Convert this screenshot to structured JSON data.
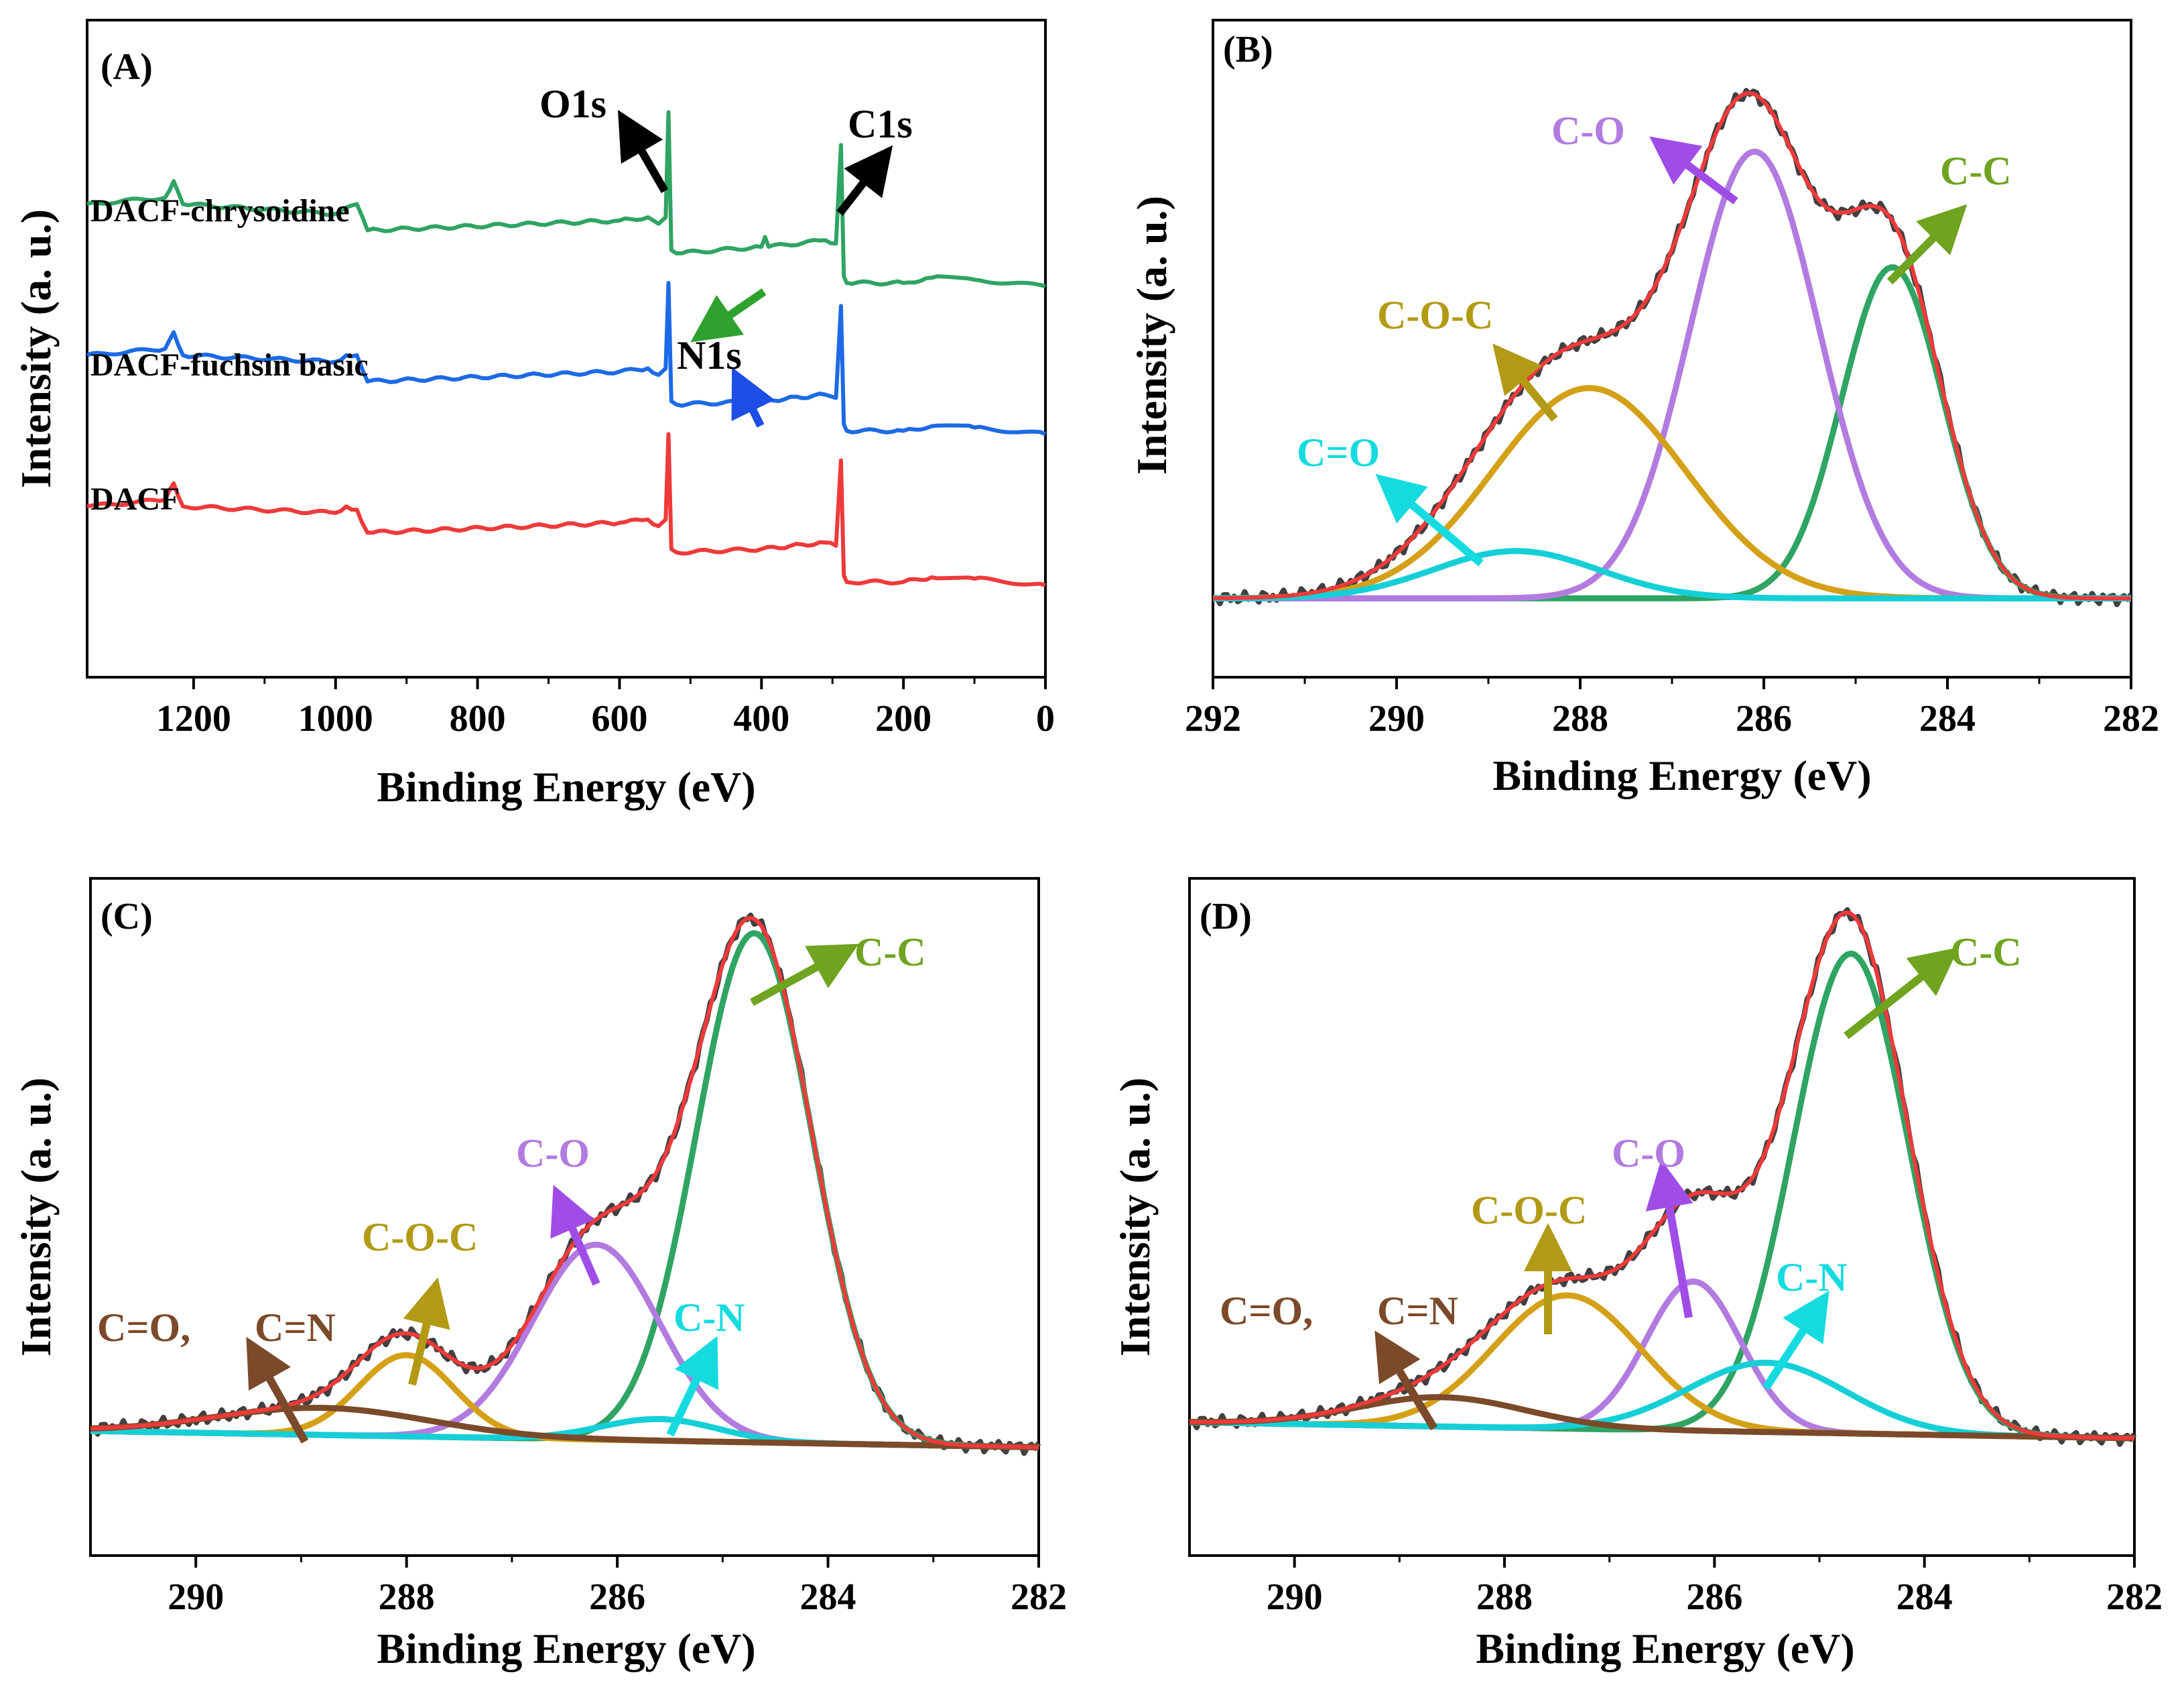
{
  "colors": {
    "axis": "#000000",
    "raw": "#404040",
    "envelope": "#ee3a3a",
    "green": "#2fa463",
    "blue": "#1d6ae5",
    "red": "#ee3a3a",
    "purple": "#b27be0",
    "gold": "#d4a017",
    "cyan": "#15cfd7",
    "brown": "#7b4a2a",
    "arrow_green": "#6fa320",
    "arrow_purple": "#a04de8",
    "arrow_gold": "#b39a14",
    "label_purple": "#b27be0",
    "label_gold": "#b39a14",
    "label_cyan": "#15dbe0",
    "label_green": "#6fa320",
    "label_brown": "#7b4a2a"
  },
  "chart_data": [
    {
      "id": "A",
      "panel_label": "(A)",
      "type": "line",
      "title": "",
      "xlabel": "Binding Energy (eV)",
      "ylabel": "Intensity (a. u.)",
      "xlim": [
        1350,
        0
      ],
      "x_reversed": true,
      "xticks": [
        1200,
        1000,
        800,
        600,
        400,
        200,
        0
      ],
      "xtick_labels": [
        "1200",
        "1000",
        "800",
        "600",
        "400",
        "200",
        "0"
      ],
      "ylim": [
        0,
        10
      ],
      "series": [
        {
          "name": "DACF-chrysoidine",
          "color_key": "green",
          "baseline": 7.2,
          "x": [
            1350,
            1240,
            1228,
            1215,
            1000,
            985,
            970,
            955,
            600,
            560,
            545,
            535,
            531,
            527,
            520,
            400,
            395,
            390,
            310,
            295,
            288,
            284,
            280,
            200,
            160,
            100,
            0
          ],
          "y": [
            7.2,
            7.3,
            7.55,
            7.2,
            7.05,
            7.15,
            7.2,
            6.8,
            6.95,
            7.0,
            6.9,
            7.0,
            8.6,
            6.5,
            6.45,
            6.55,
            6.7,
            6.55,
            6.65,
            6.6,
            8.1,
            6.1,
            6.0,
            6.0,
            6.08,
            6.05,
            5.95
          ]
        },
        {
          "name": "DACF-fuchsin basic",
          "color_key": "blue",
          "baseline": 4.9,
          "x": [
            1350,
            1240,
            1228,
            1215,
            1000,
            985,
            970,
            955,
            600,
            560,
            545,
            535,
            531,
            527,
            520,
            400,
            310,
            295,
            288,
            284,
            280,
            200,
            160,
            100,
            0
          ],
          "y": [
            4.9,
            5.0,
            5.25,
            4.9,
            4.8,
            4.9,
            4.9,
            4.5,
            4.65,
            4.7,
            4.6,
            4.7,
            6.0,
            4.2,
            4.15,
            4.2,
            4.3,
            4.25,
            5.65,
            3.85,
            3.75,
            3.75,
            3.82,
            3.8,
            3.7
          ]
        },
        {
          "name": "DACF",
          "color_key": "red",
          "baseline": 2.6,
          "x": [
            1350,
            1240,
            1228,
            1215,
            1000,
            985,
            970,
            955,
            600,
            560,
            545,
            535,
            531,
            527,
            520,
            400,
            310,
            295,
            288,
            284,
            280,
            200,
            160,
            100,
            0
          ],
          "y": [
            2.6,
            2.7,
            2.95,
            2.6,
            2.5,
            2.6,
            2.55,
            2.2,
            2.35,
            2.4,
            2.3,
            2.4,
            3.7,
            1.95,
            1.9,
            1.95,
            2.05,
            2.0,
            3.3,
            1.55,
            1.45,
            1.45,
            1.52,
            1.5,
            1.4
          ]
        }
      ],
      "series_labels": [
        "DACF-chrysoidine",
        "DACF-fuchsin basic",
        "DACF"
      ],
      "annotations": [
        {
          "text": "O1s",
          "color_key": "axis"
        },
        {
          "text": "C1s",
          "color_key": "axis"
        },
        {
          "text": "N1s",
          "color_key": "axis"
        }
      ]
    },
    {
      "id": "B",
      "panel_label": "(B)",
      "type": "line",
      "title": "",
      "xlabel": "Binding Energy (eV)",
      "ylabel": "Intensity (a. u.)",
      "xlim": [
        292,
        282
      ],
      "x_reversed": true,
      "xticks": [
        292,
        290,
        288,
        286,
        284,
        282
      ],
      "xtick_labels": [
        "292",
        "290",
        "288",
        "286",
        "284",
        "282"
      ],
      "ylim": [
        -0.15,
        1.1
      ],
      "baseline_y": 0,
      "components": [
        {
          "name": "C-C",
          "center": 284.6,
          "amplitude": 0.63,
          "sigma": 0.55,
          "color_key": "green"
        },
        {
          "name": "C-O",
          "center": 286.1,
          "amplitude": 0.85,
          "sigma": 0.7,
          "color_key": "purple"
        },
        {
          "name": "C-O-C",
          "center": 287.9,
          "amplitude": 0.4,
          "sigma": 1.05,
          "color_key": "gold"
        },
        {
          "name": "C=O",
          "center": 288.7,
          "amplitude": 0.09,
          "sigma": 0.9,
          "color_key": "cyan"
        }
      ],
      "peak_labels": [
        {
          "text": "C-O",
          "color_key": "label_purple"
        },
        {
          "text": "C-C",
          "color_key": "label_green"
        },
        {
          "text": "C-O-C",
          "color_key": "label_gold"
        },
        {
          "text": "C=O",
          "color_key": "label_cyan"
        }
      ]
    },
    {
      "id": "C",
      "panel_label": "(C)",
      "type": "line",
      "title": "",
      "xlabel": "Binding Energy (eV)",
      "ylabel": "Intensity (a. u.)",
      "xlim": [
        291,
        282
      ],
      "x_reversed": true,
      "xticks": [
        290,
        288,
        286,
        284,
        282
      ],
      "xtick_labels": [
        "290",
        "288",
        "286",
        "284",
        "282"
      ],
      "ylim": [
        -0.2,
        1.05
      ],
      "baseline_start": 0.03,
      "baseline_end": 0,
      "components": [
        {
          "name": "C-C",
          "center": 284.7,
          "amplitude": 0.94,
          "sigma": 0.55,
          "color_key": "green"
        },
        {
          "name": "C-O",
          "center": 286.2,
          "amplitude": 0.36,
          "sigma": 0.6,
          "color_key": "purple"
        },
        {
          "name": "C-O-C",
          "center": 288.0,
          "amplitude": 0.15,
          "sigma": 0.45,
          "color_key": "gold"
        },
        {
          "name": "C-N",
          "center": 285.6,
          "amplitude": 0.04,
          "sigma": 0.55,
          "color_key": "cyan"
        },
        {
          "name": "C=O, C=N",
          "center": 288.8,
          "amplitude": 0.05,
          "sigma": 1.0,
          "color_key": "brown"
        }
      ],
      "peak_labels": [
        {
          "text": "C-C",
          "color_key": "label_green"
        },
        {
          "text": "C-O",
          "color_key": "label_purple"
        },
        {
          "text": "C-O-C",
          "color_key": "label_gold"
        },
        {
          "text": "C-N",
          "color_key": "label_cyan"
        },
        {
          "text": "C=O,",
          "color_key": "label_brown"
        },
        {
          "text": "C=N",
          "color_key": "label_brown"
        }
      ]
    },
    {
      "id": "D",
      "panel_label": "(D)",
      "type": "line",
      "title": "",
      "xlabel": "Binding Energy (eV)",
      "ylabel": "Intensity (a. u.)",
      "xlim": [
        291,
        282
      ],
      "x_reversed": true,
      "xticks": [
        290,
        288,
        286,
        284,
        282
      ],
      "xtick_labels": [
        "290",
        "288",
        "286",
        "284",
        "282"
      ],
      "ylim": [
        -0.22,
        1.05
      ],
      "baseline_start": 0.03,
      "baseline_end": 0,
      "components": [
        {
          "name": "C-C",
          "center": 284.7,
          "amplitude": 0.9,
          "sigma": 0.55,
          "color_key": "green"
        },
        {
          "name": "C-O",
          "center": 286.2,
          "amplitude": 0.28,
          "sigma": 0.45,
          "color_key": "purple"
        },
        {
          "name": "C-O-C",
          "center": 287.4,
          "amplitude": 0.25,
          "sigma": 0.7,
          "color_key": "gold"
        },
        {
          "name": "C-N",
          "center": 285.5,
          "amplitude": 0.13,
          "sigma": 0.75,
          "color_key": "cyan"
        },
        {
          "name": "C=O, C=N",
          "center": 288.6,
          "amplitude": 0.055,
          "sigma": 0.8,
          "color_key": "brown"
        }
      ],
      "peak_labels": [
        {
          "text": "C-C",
          "color_key": "label_green"
        },
        {
          "text": "C-O",
          "color_key": "label_purple"
        },
        {
          "text": "C-O-C",
          "color_key": "label_gold"
        },
        {
          "text": "C-N",
          "color_key": "label_cyan"
        },
        {
          "text": "C=O,",
          "color_key": "label_brown"
        },
        {
          "text": "C=N",
          "color_key": "label_brown"
        }
      ]
    }
  ]
}
